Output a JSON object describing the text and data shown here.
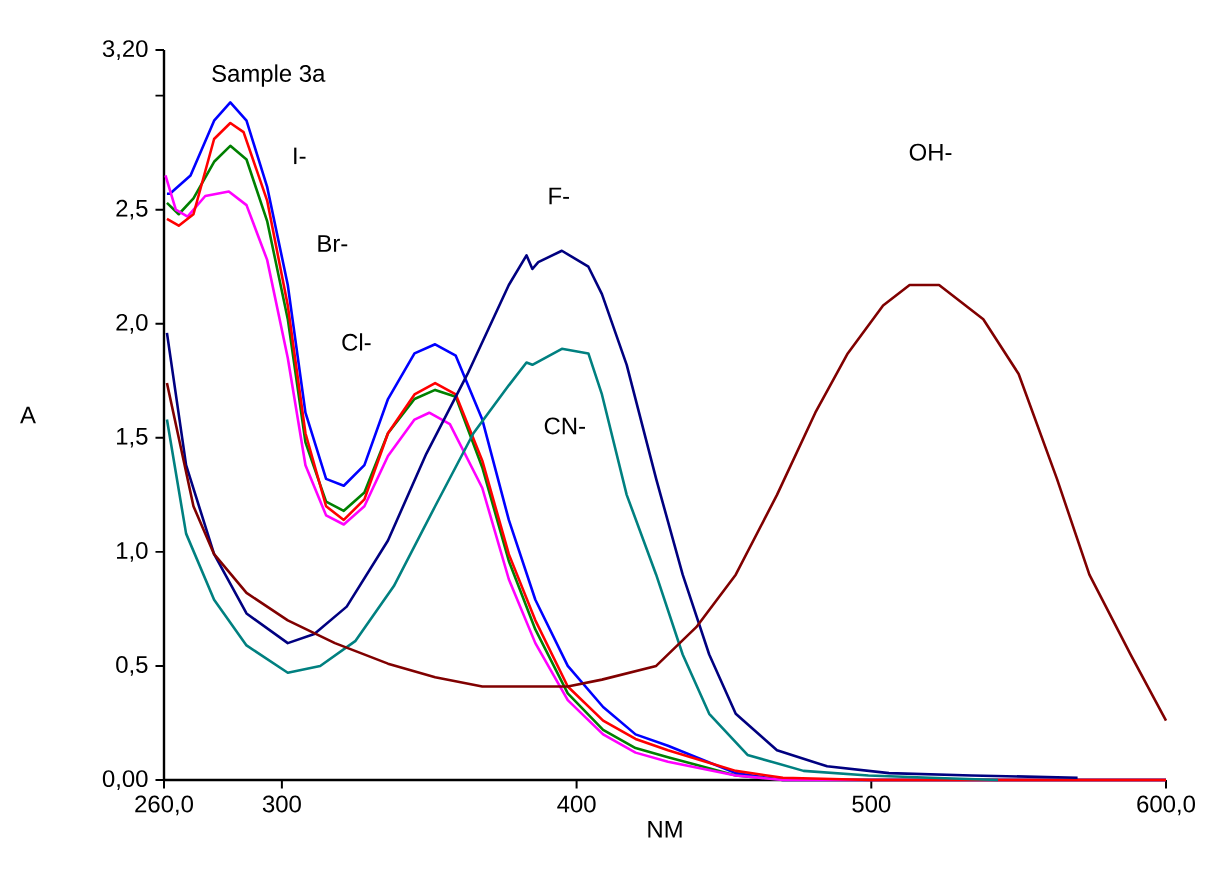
{
  "chart_data": {
    "type": "line",
    "title": "Sample 3a",
    "xlabel": "NM",
    "ylabel": "A",
    "xlim": [
      260,
      600
    ],
    "ylim": [
      0,
      3.2
    ],
    "xticks": [
      {
        "value": 260,
        "label": "260,0"
      },
      300,
      400,
      500,
      {
        "value": 600,
        "label": "600,0"
      }
    ],
    "yticks": [
      {
        "value": 0,
        "label": "0,00"
      },
      {
        "value": 0.5,
        "label": "0,5"
      },
      {
        "value": 1.0,
        "label": "1,0"
      },
      {
        "value": 1.5,
        "label": "1,5"
      },
      {
        "value": 2.0,
        "label": "2,0"
      },
      {
        "value": 2.5,
        "label": "2,5"
      },
      {
        "value": 3.0,
        "label": null
      },
      {
        "value": 3.2,
        "label": "3,20"
      }
    ],
    "annotations": [
      "I-",
      "Br-",
      "Cl-",
      "F-",
      "CN-",
      "OH-"
    ],
    "series": [
      {
        "color": "#0000ff",
        "x": [
          261,
          262,
          269,
          277,
          282.5,
          288,
          295,
          302,
          308,
          315,
          321,
          328,
          336,
          345,
          352,
          359,
          368,
          377,
          386,
          397,
          409,
          420,
          431,
          454,
          470,
          600
        ],
        "values": [
          2.57,
          2.57,
          2.65,
          2.89,
          2.97,
          2.89,
          2.6,
          2.17,
          1.61,
          1.32,
          1.29,
          1.38,
          1.67,
          1.87,
          1.91,
          1.86,
          1.58,
          1.14,
          0.79,
          0.5,
          0.32,
          0.2,
          0.15,
          0.03,
          0.0,
          0.0
        ]
      },
      {
        "color": "#008000",
        "x": [
          261,
          265,
          270,
          277,
          282.5,
          288,
          295,
          302,
          308,
          315,
          321,
          328,
          336,
          345,
          352,
          359,
          368,
          377,
          386,
          397,
          409,
          420,
          431,
          454,
          470,
          600
        ],
        "values": [
          2.53,
          2.48,
          2.55,
          2.71,
          2.78,
          2.72,
          2.45,
          2.02,
          1.48,
          1.22,
          1.18,
          1.26,
          1.52,
          1.67,
          1.71,
          1.68,
          1.37,
          0.96,
          0.66,
          0.38,
          0.22,
          0.14,
          0.1,
          0.02,
          0.0,
          0.0
        ]
      },
      {
        "color": "#ff00ff",
        "x": [
          260.5,
          264,
          268,
          274,
          282,
          288,
          295,
          302,
          308,
          315,
          321,
          328,
          336,
          345,
          350,
          357,
          368,
          377,
          386,
          397,
          409,
          420,
          431,
          454,
          470,
          600
        ],
        "values": [
          2.65,
          2.5,
          2.47,
          2.56,
          2.58,
          2.52,
          2.28,
          1.85,
          1.38,
          1.16,
          1.12,
          1.2,
          1.42,
          1.58,
          1.61,
          1.56,
          1.28,
          0.88,
          0.6,
          0.35,
          0.2,
          0.12,
          0.08,
          0.02,
          0.0,
          0.0
        ]
      },
      {
        "color": "#ff0000",
        "x": [
          261,
          265,
          270,
          277,
          282.5,
          287,
          295,
          302,
          308,
          315,
          321,
          328,
          336,
          345,
          352,
          359,
          368,
          377,
          386,
          397,
          409,
          420,
          431,
          454,
          470,
          500,
          600
        ],
        "values": [
          2.46,
          2.43,
          2.48,
          2.81,
          2.88,
          2.84,
          2.54,
          2.08,
          1.52,
          1.2,
          1.14,
          1.23,
          1.52,
          1.69,
          1.74,
          1.69,
          1.4,
          0.99,
          0.7,
          0.41,
          0.26,
          0.18,
          0.13,
          0.04,
          0.01,
          0.0,
          0.0
        ]
      },
      {
        "color": "#000080",
        "x": [
          261,
          267.5,
          277,
          288,
          302,
          311,
          322,
          336,
          349,
          363,
          377,
          383,
          385,
          387,
          395,
          404,
          408.6,
          417,
          427,
          436,
          445,
          454,
          468,
          485,
          506,
          534,
          570
        ],
        "values": [
          1.96,
          1.38,
          0.99,
          0.73,
          0.6,
          0.64,
          0.76,
          1.05,
          1.43,
          1.78,
          2.17,
          2.3,
          2.24,
          2.27,
          2.32,
          2.25,
          2.13,
          1.82,
          1.32,
          0.9,
          0.55,
          0.29,
          0.13,
          0.06,
          0.03,
          0.02,
          0.01
        ]
      },
      {
        "color": "#008080",
        "x": [
          261,
          267.5,
          277,
          288,
          302,
          313,
          325,
          338,
          352,
          365,
          377,
          383,
          385,
          395,
          404,
          408.6,
          417,
          427,
          436,
          445,
          458,
          477,
          499,
          520,
          543
        ],
        "values": [
          1.58,
          1.08,
          0.79,
          0.59,
          0.47,
          0.5,
          0.61,
          0.85,
          1.2,
          1.52,
          1.73,
          1.83,
          1.82,
          1.89,
          1.87,
          1.69,
          1.25,
          0.9,
          0.55,
          0.29,
          0.11,
          0.04,
          0.02,
          0.01,
          0.0
        ]
      },
      {
        "color": "#800000",
        "x": [
          261,
          270,
          277,
          288,
          302,
          318,
          336,
          352,
          368,
          397,
          408.6,
          427,
          440.6,
          454,
          468,
          481,
          492,
          504,
          513,
          523,
          538,
          550,
          563,
          574,
          588,
          600
        ],
        "values": [
          1.74,
          1.2,
          0.99,
          0.82,
          0.7,
          0.6,
          0.51,
          0.45,
          0.41,
          0.41,
          0.44,
          0.5,
          0.67,
          0.9,
          1.25,
          1.61,
          1.87,
          2.08,
          2.17,
          2.17,
          2.02,
          1.78,
          1.32,
          0.9,
          0.55,
          0.26
        ]
      }
    ]
  }
}
